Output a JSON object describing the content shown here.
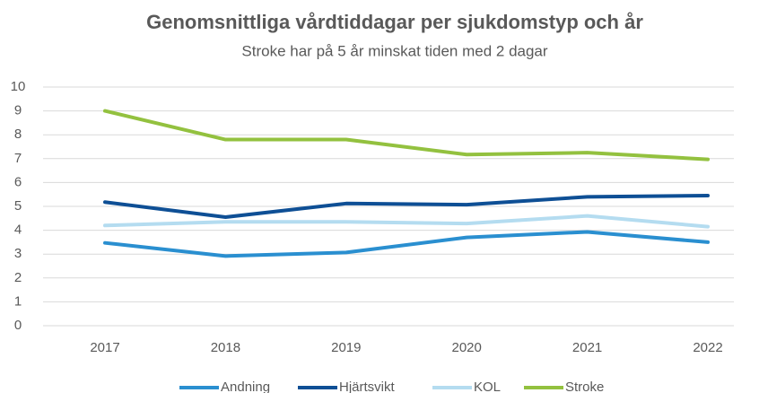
{
  "chart_data": {
    "type": "line",
    "title": "Genomsnittliga vårdtiddagar per sjukdomstyp och år",
    "subtitle": "Stroke har på 5 år minskat tiden med 2 dagar",
    "categories": [
      "2017",
      "2018",
      "2019",
      "2020",
      "2021",
      "2022"
    ],
    "series": [
      {
        "name": "Andning",
        "color": "#2a8fd0",
        "values": [
          3.47,
          2.92,
          3.07,
          3.7,
          3.93,
          3.5
        ]
      },
      {
        "name": "Hjärtsvikt",
        "color": "#0e4f95",
        "values": [
          5.18,
          4.55,
          5.12,
          5.07,
          5.4,
          5.45
        ]
      },
      {
        "name": "KOL",
        "color": "#b4dcf0",
        "values": [
          4.2,
          4.35,
          4.35,
          4.28,
          4.6,
          4.15
        ]
      },
      {
        "name": "Stroke",
        "color": "#93c13f",
        "values": [
          9.0,
          7.8,
          7.8,
          7.17,
          7.25,
          6.97
        ]
      }
    ],
    "ylim": [
      0,
      10
    ],
    "yticks": [
      0,
      1,
      2,
      3,
      4,
      5,
      6,
      7,
      8,
      9,
      10
    ],
    "grid": true,
    "legend": "bottom"
  }
}
